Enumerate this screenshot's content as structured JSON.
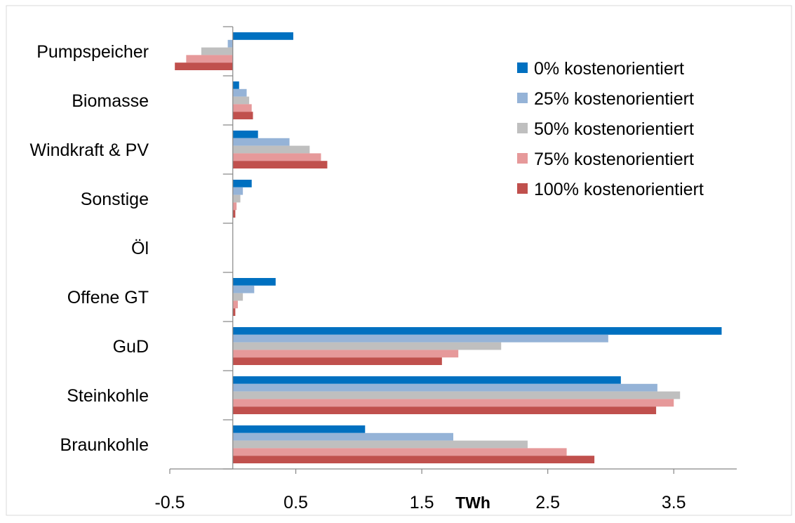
{
  "chart_data": {
    "type": "bar",
    "orientation": "horizontal",
    "xlabel": "TWh",
    "xlim": [
      -0.5,
      4.0
    ],
    "xticks": [
      "-0.5",
      "0.5",
      "1.5",
      "2.5",
      "3.5"
    ],
    "xtick_values": [
      -0.5,
      0.5,
      1.5,
      2.5,
      3.5
    ],
    "grid": false,
    "legend_position": "top-right",
    "categories": [
      "Pumpspeicher",
      "Biomasse",
      "Windkraft & PV",
      "Sonstige",
      "Öl",
      "Offene GT",
      "GuD",
      "Steinkohle",
      "Braunkohle"
    ],
    "series": [
      {
        "name": "0% kostenorientiert",
        "color": "#0070c0",
        "values": [
          0.48,
          0.05,
          0.2,
          0.15,
          0.0,
          0.34,
          3.88,
          3.08,
          1.05
        ]
      },
      {
        "name": "25% kostenorientiert",
        "color": "#95b3d7",
        "values": [
          -0.04,
          0.11,
          0.45,
          0.08,
          0.0,
          0.17,
          2.98,
          3.37,
          1.75
        ]
      },
      {
        "name": "50% kostenorientiert",
        "color": "#bfbfbf",
        "values": [
          -0.25,
          0.13,
          0.61,
          0.06,
          0.0,
          0.08,
          2.13,
          3.55,
          2.34
        ]
      },
      {
        "name": "75% kostenorientiert",
        "color": "#e6999a",
        "values": [
          -0.37,
          0.15,
          0.7,
          0.03,
          0.0,
          0.04,
          1.79,
          3.5,
          2.65
        ]
      },
      {
        "name": "100% kostenorientiert",
        "color": "#c0504d",
        "values": [
          -0.46,
          0.16,
          0.75,
          0.02,
          0.0,
          0.02,
          1.66,
          3.36,
          2.87
        ]
      }
    ]
  }
}
